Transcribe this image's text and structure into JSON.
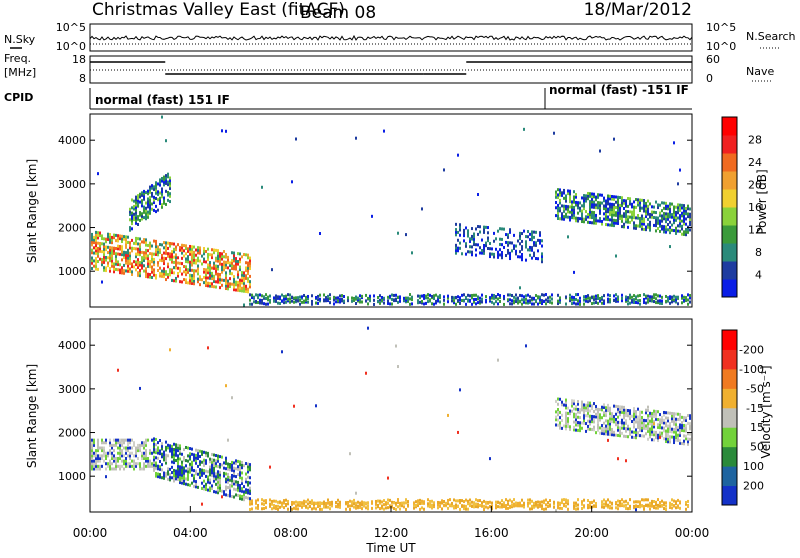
{
  "header": {
    "title": "Christmas Valley East (fitACF)",
    "beam": "Beam 08",
    "date": "18/Mar/2012"
  },
  "nsky_panel": {
    "left_label": "N.Sky",
    "right_label": "N.Search",
    "left_ticks": [
      "10^5",
      "10^0"
    ],
    "right_ticks": [
      "10^5",
      "10^0"
    ]
  },
  "freq_panel": {
    "left_label_line1": "Freq.",
    "left_label_line2": "[MHz]",
    "right_label": "Nave",
    "left_ticks": [
      "18",
      "8"
    ],
    "right_ticks": [
      "60",
      "0"
    ]
  },
  "cpid": {
    "label": "CPID",
    "segments": [
      {
        "text": "normal (fast) 151 IF",
        "start_hour": 0
      },
      {
        "text": "normal (fast) -151 IF",
        "start_hour": 18.1
      }
    ]
  },
  "chart_data": [
    {
      "type": "heatmap",
      "name": "power",
      "xlabel": "",
      "ylabel": "Slant Range [km]",
      "xlim": [
        0,
        24
      ],
      "ylim": [
        180,
        4600
      ],
      "yticks": [
        1000,
        2000,
        3000,
        4000
      ],
      "colorbar": {
        "label": "Power [dB]",
        "ticks": [
          "4",
          "8",
          "12",
          "16",
          "20",
          "24",
          "28"
        ],
        "colors": [
          "#0a1ee6",
          "#1e3ca0",
          "#2a8a7a",
          "#3a9a3a",
          "#8ad23a",
          "#f0d030",
          "#f0a030",
          "#f06a20",
          "#f02020",
          "#ff0000"
        ]
      },
      "features": [
        {
          "hour_start": 0,
          "hour_end": 6.4,
          "range_center_start": 1550,
          "range_center_end": 1000,
          "level": "high"
        },
        {
          "hour_start": 1.5,
          "hour_end": 3.2,
          "range_center_start": 2300,
          "range_center_end": 3000,
          "level": "medium"
        },
        {
          "hour_start": 14.5,
          "hour_end": 18,
          "range_center_start": 1800,
          "range_center_end": 1600,
          "level": "low"
        },
        {
          "hour_start": 18.5,
          "hour_end": 24,
          "range_center_start": 2600,
          "range_center_end": 2200,
          "level": "medium"
        }
      ]
    },
    {
      "type": "heatmap",
      "name": "velocity",
      "xlabel": "Time UT",
      "ylabel": "Slant Range [km]",
      "xlim": [
        0,
        24
      ],
      "ylim": [
        180,
        4600
      ],
      "yticks": [
        1000,
        2000,
        3000,
        4000
      ],
      "xticks": [
        "00:00",
        "04:00",
        "08:00",
        "12:00",
        "16:00",
        "20:00",
        "00:00"
      ],
      "colorbar": {
        "label": "Velocity [m s⁻¹]",
        "ticks": [
          "200",
          "100",
          "50",
          "15",
          "-15",
          "-50",
          "-100",
          "-200"
        ],
        "colors": [
          "#1432c8",
          "#1e64a0",
          "#2a8a3a",
          "#72d23a",
          "#c0c0b8",
          "#f0b030",
          "#f07a20",
          "#f03020",
          "#ff0000"
        ]
      },
      "features": [
        {
          "hour_start": 0,
          "hour_end": 2.5,
          "range_center_start": 1550,
          "range_center_end": 1550,
          "level": "gray"
        },
        {
          "hour_start": 2.5,
          "hour_end": 6.4,
          "range_center_start": 1500,
          "range_center_end": 900,
          "level": "blue-green"
        },
        {
          "hour_start": 18.5,
          "hour_end": 24,
          "range_center_start": 2500,
          "range_center_end": 2100,
          "level": "gray"
        }
      ]
    }
  ]
}
